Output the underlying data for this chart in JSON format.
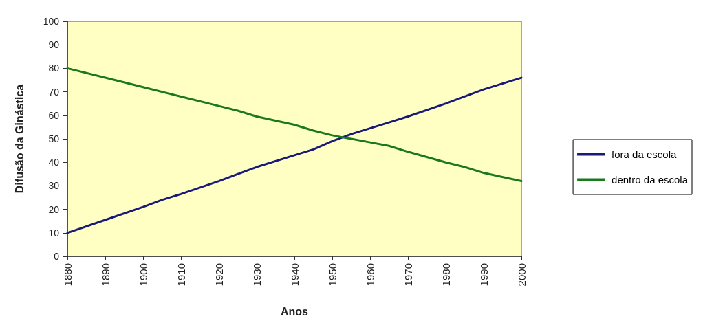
{
  "chart_data": {
    "type": "line",
    "xlabel": "Anos",
    "ylabel": "Difusão da Ginástica",
    "xlim": [
      1880,
      2000
    ],
    "xticks": [
      1880,
      1890,
      1900,
      1910,
      1920,
      1930,
      1940,
      1950,
      1960,
      1970,
      1980,
      1990,
      2000
    ],
    "ylim": [
      0,
      100
    ],
    "yticks": [
      0,
      10,
      20,
      30,
      40,
      50,
      60,
      70,
      80,
      90,
      100
    ],
    "grid": false,
    "legend": "right",
    "marker": "none",
    "line_style": "solid",
    "series": [
      {
        "name": "fora da escola",
        "color": "#1a1a7a",
        "x": [
          1880,
          1890,
          1900,
          1905,
          1910,
          1920,
          1930,
          1940,
          1945,
          1950,
          1955,
          1960,
          1965,
          1970,
          1980,
          1990,
          2000
        ],
        "values": [
          10,
          15.5,
          21,
          24,
          26.5,
          32,
          38,
          43,
          45.5,
          49,
          52,
          54.5,
          57,
          59.5,
          65,
          71,
          76
        ]
      },
      {
        "name": "dentro da escola",
        "color": "#1a7a1a",
        "x": [
          1880,
          1890,
          1900,
          1910,
          1920,
          1925,
          1930,
          1940,
          1945,
          1950,
          1960,
          1965,
          1970,
          1980,
          1985,
          1990,
          2000
        ],
        "values": [
          80,
          76,
          72,
          68,
          64,
          62,
          59.5,
          56,
          53.5,
          51.5,
          48.5,
          47,
          44.5,
          40,
          38,
          35.5,
          32
        ]
      }
    ]
  }
}
